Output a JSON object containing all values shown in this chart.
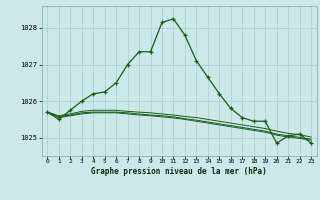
{
  "title": "Graphe pression niveau de la mer (hPa)",
  "bg_color": "#cce8e8",
  "grid_color": "#aacccc",
  "line_color": "#1a5c1a",
  "xlim": [
    -0.5,
    23.5
  ],
  "ylim": [
    1024.5,
    1028.6
  ],
  "yticks": [
    1025,
    1026,
    1027,
    1028
  ],
  "xticks": [
    0,
    1,
    2,
    3,
    4,
    5,
    6,
    7,
    8,
    9,
    10,
    11,
    12,
    13,
    14,
    15,
    16,
    17,
    18,
    19,
    20,
    21,
    22,
    23
  ],
  "series_main": [
    1025.7,
    1025.5,
    1025.75,
    1026.0,
    1026.2,
    1026.25,
    1026.5,
    1027.0,
    1027.35,
    1027.35,
    1028.15,
    1028.25,
    1027.8,
    1027.1,
    1026.65,
    1026.2,
    1025.8,
    1025.55,
    1025.45,
    1025.45,
    1024.85,
    1025.05,
    1025.1,
    1024.85
  ],
  "series_flat1": [
    1025.7,
    1025.6,
    1025.65,
    1025.72,
    1025.75,
    1025.75,
    1025.75,
    1025.72,
    1025.7,
    1025.68,
    1025.65,
    1025.62,
    1025.58,
    1025.55,
    1025.5,
    1025.45,
    1025.4,
    1025.35,
    1025.3,
    1025.25,
    1025.18,
    1025.12,
    1025.08,
    1025.02
  ],
  "series_flat2": [
    1025.7,
    1025.58,
    1025.62,
    1025.68,
    1025.7,
    1025.7,
    1025.7,
    1025.68,
    1025.65,
    1025.62,
    1025.6,
    1025.57,
    1025.52,
    1025.48,
    1025.43,
    1025.38,
    1025.33,
    1025.28,
    1025.23,
    1025.18,
    1025.1,
    1025.05,
    1025.01,
    1024.96
  ],
  "series_flat3": [
    1025.7,
    1025.55,
    1025.6,
    1025.65,
    1025.68,
    1025.68,
    1025.68,
    1025.65,
    1025.62,
    1025.6,
    1025.57,
    1025.54,
    1025.5,
    1025.45,
    1025.4,
    1025.35,
    1025.3,
    1025.25,
    1025.2,
    1025.15,
    1025.07,
    1025.02,
    1024.98,
    1024.93
  ]
}
